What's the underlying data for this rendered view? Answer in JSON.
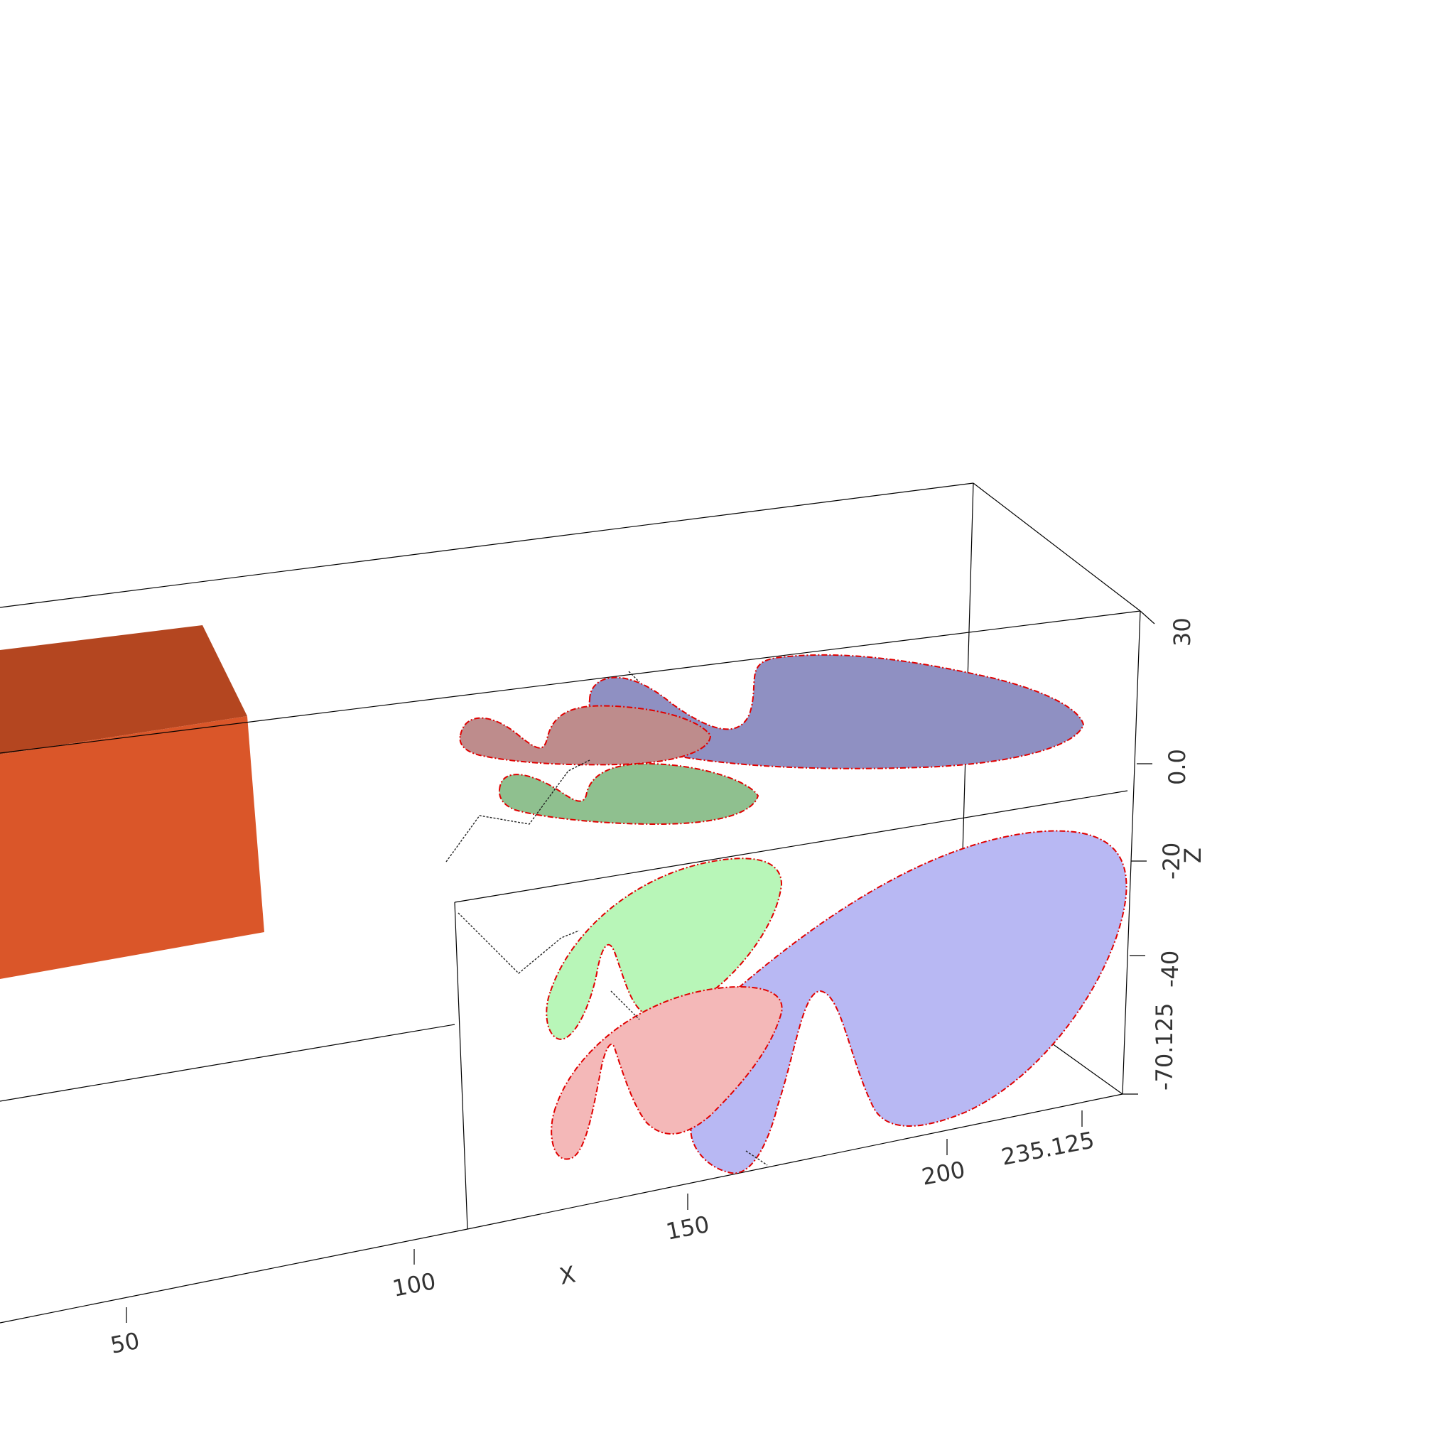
{
  "axes": {
    "x_title": "X",
    "z_title": "Z",
    "x_ticks": [
      "50",
      "100",
      "150",
      "200",
      "235.125"
    ],
    "z_ticks": [
      "30",
      "0.0",
      "-20",
      "-40",
      "-70.125"
    ]
  },
  "colors": {
    "box_front": "#da5629",
    "box_top": "#b44620",
    "upper_blue": "#8f90c2",
    "upper_rose": "#be8c8c",
    "upper_green": "#8fc08f",
    "lower_blue": "#b8b8f3",
    "lower_pink": "#f4b8b8",
    "lower_green": "#b8f6b8",
    "outline": "#e00000"
  }
}
